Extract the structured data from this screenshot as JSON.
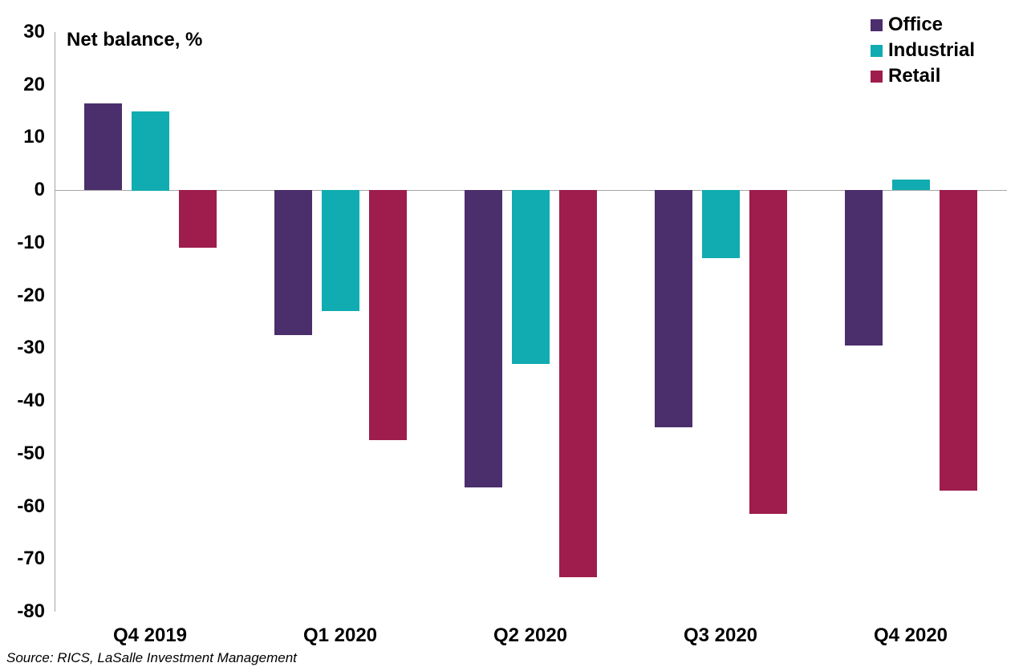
{
  "chart_data": {
    "type": "bar",
    "title": "Net balance, %",
    "categories": [
      "Q4 2019",
      "Q1 2020",
      "Q2 2020",
      "Q3 2020",
      "Q4 2020"
    ],
    "series": [
      {
        "name": "Office",
        "color": "#4b2e6c",
        "values": [
          16.5,
          -27.5,
          -56.5,
          -45,
          -29.5
        ]
      },
      {
        "name": "Industrial",
        "color": "#10acb1",
        "values": [
          15,
          -23,
          -33,
          -13,
          2
        ]
      },
      {
        "name": "Retail",
        "color": "#9e1d4c",
        "values": [
          -11,
          -47.5,
          -73.5,
          -61.5,
          -57
        ]
      }
    ],
    "ylim": [
      -80,
      30
    ],
    "yticks": [
      30,
      20,
      10,
      0,
      -10,
      -20,
      -30,
      -40,
      -50,
      -60,
      -70,
      -80
    ],
    "xlabel": "",
    "ylabel": "",
    "grid": "zero-line-only",
    "legend_position": "top-right"
  },
  "source": "Source: RICS, LaSalle Investment Management",
  "colors": {
    "axis_line": "#a6a6a6",
    "text": "#000000",
    "background": "#ffffff"
  }
}
